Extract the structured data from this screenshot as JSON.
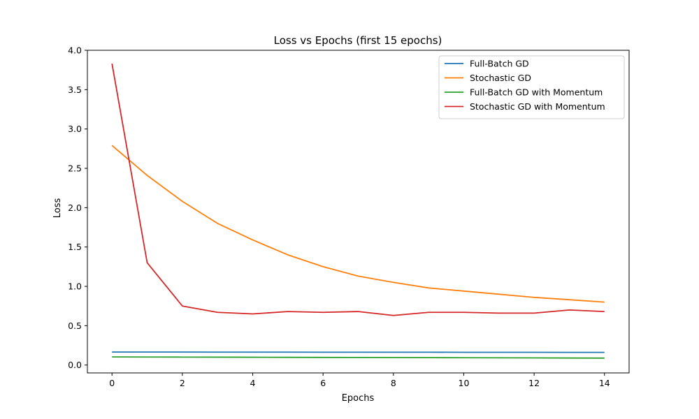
{
  "chart_data": {
    "type": "line",
    "title": "Loss vs Epochs (first 15 epochs)",
    "xlabel": "Epochs",
    "ylabel": "Loss",
    "x": [
      0,
      1,
      2,
      3,
      4,
      5,
      6,
      7,
      8,
      9,
      10,
      11,
      12,
      13,
      14
    ],
    "xlim": [
      -0.7,
      14.7
    ],
    "ylim": [
      -0.1,
      4.0
    ],
    "xticks": [
      0,
      2,
      4,
      6,
      8,
      10,
      12,
      14
    ],
    "xtick_labels": [
      "0",
      "2",
      "4",
      "6",
      "8",
      "10",
      "12",
      "14"
    ],
    "yticks": [
      0.0,
      0.5,
      1.0,
      1.5,
      2.0,
      2.5,
      3.0,
      3.5,
      4.0
    ],
    "ytick_labels": [
      "0.0",
      "0.5",
      "1.0",
      "1.5",
      "2.0",
      "2.5",
      "3.0",
      "3.5",
      "4.0"
    ],
    "grid": false,
    "legend_position": "top-right",
    "series": [
      {
        "name": "Full-Batch GD",
        "color": "#1f77b4",
        "values": [
          0.165,
          0.165,
          0.165,
          0.164,
          0.164,
          0.164,
          0.163,
          0.163,
          0.163,
          0.163,
          0.162,
          0.162,
          0.162,
          0.161,
          0.161
        ]
      },
      {
        "name": "Stochastic GD",
        "color": "#ff7f0e",
        "values": [
          2.79,
          2.41,
          2.08,
          1.8,
          1.59,
          1.4,
          1.25,
          1.13,
          1.05,
          0.98,
          0.94,
          0.9,
          0.86,
          0.83,
          0.8
        ]
      },
      {
        "name": "Full-Batch GD with Momentum",
        "color": "#2ca02c",
        "values": [
          0.103,
          0.102,
          0.101,
          0.1,
          0.099,
          0.098,
          0.097,
          0.096,
          0.095,
          0.094,
          0.093,
          0.092,
          0.091,
          0.089,
          0.088
        ]
      },
      {
        "name": "Stochastic GD with Momentum",
        "color": "#d62728",
        "values": [
          3.83,
          1.3,
          0.75,
          0.67,
          0.65,
          0.68,
          0.67,
          0.68,
          0.63,
          0.67,
          0.67,
          0.66,
          0.66,
          0.7,
          0.68
        ]
      }
    ]
  }
}
